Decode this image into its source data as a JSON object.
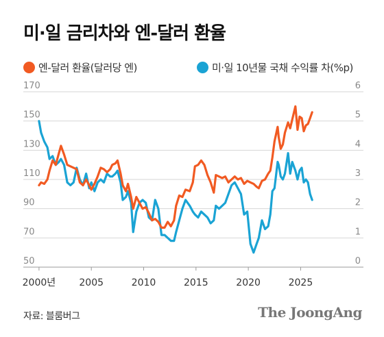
{
  "title": "미·일 금리차와 엔-달러 환율",
  "source": "자료: 블룸버그",
  "brand": "The JoongAng",
  "chart_data": {
    "type": "line",
    "x_tick_labels": [
      "2000년",
      "2005",
      "2010",
      "2015",
      "2020",
      "2025"
    ],
    "x_ticks": [
      2000,
      2005,
      2010,
      2015,
      2020,
      2025
    ],
    "xlim": [
      1998.5,
      2031
    ],
    "y_left": {
      "ticks": [
        50,
        70,
        90,
        110,
        130,
        150,
        170
      ],
      "ylim": [
        50,
        170
      ]
    },
    "y_right": {
      "ticks": [
        0,
        1,
        2,
        3,
        4,
        5,
        6
      ],
      "ylim": [
        0,
        6
      ]
    },
    "grid": true,
    "legend_position": "top",
    "series": [
      {
        "name": "엔-달러 환율(달러당 엔)",
        "axis": "left",
        "color": "#f15a22",
        "points": [
          [
            2000.0,
            106
          ],
          [
            2000.2,
            108
          ],
          [
            2000.5,
            107
          ],
          [
            2000.8,
            110
          ],
          [
            2001.0,
            116
          ],
          [
            2001.3,
            123
          ],
          [
            2001.6,
            120
          ],
          [
            2001.9,
            128
          ],
          [
            2002.1,
            133
          ],
          [
            2002.4,
            127
          ],
          [
            2002.7,
            120
          ],
          [
            2003.0,
            119
          ],
          [
            2003.3,
            118
          ],
          [
            2003.6,
            117
          ],
          [
            2003.9,
            108
          ],
          [
            2004.2,
            106
          ],
          [
            2004.5,
            110
          ],
          [
            2004.8,
            106
          ],
          [
            2005.0,
            103
          ],
          [
            2005.3,
            107
          ],
          [
            2005.6,
            112
          ],
          [
            2005.9,
            118
          ],
          [
            2006.2,
            117
          ],
          [
            2006.5,
            115
          ],
          [
            2006.8,
            117
          ],
          [
            2007.0,
            120
          ],
          [
            2007.3,
            121
          ],
          [
            2007.5,
            123
          ],
          [
            2007.8,
            114
          ],
          [
            2008.0,
            106
          ],
          [
            2008.3,
            102
          ],
          [
            2008.5,
            107
          ],
          [
            2008.8,
            98
          ],
          [
            2009.0,
            90
          ],
          [
            2009.3,
            98
          ],
          [
            2009.6,
            94
          ],
          [
            2009.9,
            90
          ],
          [
            2010.2,
            91
          ],
          [
            2010.5,
            87
          ],
          [
            2010.8,
            82
          ],
          [
            2011.1,
            83
          ],
          [
            2011.4,
            81
          ],
          [
            2011.7,
            77
          ],
          [
            2012.0,
            77
          ],
          [
            2012.3,
            81
          ],
          [
            2012.6,
            78
          ],
          [
            2012.9,
            82
          ],
          [
            2013.1,
            92
          ],
          [
            2013.4,
            99
          ],
          [
            2013.7,
            98
          ],
          [
            2014.0,
            103
          ],
          [
            2014.4,
            102
          ],
          [
            2014.7,
            108
          ],
          [
            2014.9,
            119
          ],
          [
            2015.2,
            120
          ],
          [
            2015.5,
            123
          ],
          [
            2015.8,
            120
          ],
          [
            2016.1,
            113
          ],
          [
            2016.4,
            108
          ],
          [
            2016.7,
            101
          ],
          [
            2016.9,
            113
          ],
          [
            2017.2,
            112
          ],
          [
            2017.5,
            111
          ],
          [
            2017.8,
            112
          ],
          [
            2018.1,
            108
          ],
          [
            2018.4,
            110
          ],
          [
            2018.7,
            112
          ],
          [
            2019.0,
            110
          ],
          [
            2019.3,
            111
          ],
          [
            2019.6,
            107
          ],
          [
            2019.9,
            109
          ],
          [
            2020.2,
            108
          ],
          [
            2020.5,
            107
          ],
          [
            2020.8,
            105
          ],
          [
            2021.0,
            104
          ],
          [
            2021.3,
            109
          ],
          [
            2021.6,
            110
          ],
          [
            2021.9,
            114
          ],
          [
            2022.1,
            116
          ],
          [
            2022.3,
            125
          ],
          [
            2022.5,
            136
          ],
          [
            2022.8,
            146
          ],
          [
            2022.9,
            139
          ],
          [
            2023.1,
            131
          ],
          [
            2023.3,
            134
          ],
          [
            2023.5,
            142
          ],
          [
            2023.8,
            149
          ],
          [
            2024.0,
            145
          ],
          [
            2024.2,
            151
          ],
          [
            2024.5,
            160
          ],
          [
            2024.7,
            144
          ],
          [
            2024.9,
            153
          ],
          [
            2025.1,
            152
          ],
          [
            2025.3,
            143
          ],
          [
            2025.5,
            147
          ],
          [
            2025.7,
            148
          ],
          [
            2025.9,
            152
          ],
          [
            2026.1,
            156
          ]
        ]
      },
      {
        "name": "미·일 10년물 국채 수익률 차(%p)",
        "axis": "right",
        "color": "#1aa3d4",
        "points": [
          [
            2000.0,
            5.0
          ],
          [
            2000.2,
            4.6
          ],
          [
            2000.5,
            4.3
          ],
          [
            2000.8,
            4.1
          ],
          [
            2001.0,
            3.7
          ],
          [
            2001.3,
            3.8
          ],
          [
            2001.6,
            3.5
          ],
          [
            2001.9,
            3.6
          ],
          [
            2002.1,
            3.7
          ],
          [
            2002.4,
            3.5
          ],
          [
            2002.7,
            2.9
          ],
          [
            2003.0,
            2.8
          ],
          [
            2003.3,
            2.9
          ],
          [
            2003.6,
            3.4
          ],
          [
            2003.9,
            3.0
          ],
          [
            2004.2,
            2.8
          ],
          [
            2004.5,
            3.2
          ],
          [
            2004.8,
            2.7
          ],
          [
            2005.0,
            2.9
          ],
          [
            2005.3,
            2.6
          ],
          [
            2005.6,
            2.9
          ],
          [
            2005.9,
            3.0
          ],
          [
            2006.2,
            2.9
          ],
          [
            2006.5,
            3.2
          ],
          [
            2006.8,
            3.1
          ],
          [
            2007.0,
            3.1
          ],
          [
            2007.3,
            3.2
          ],
          [
            2007.5,
            3.3
          ],
          [
            2007.8,
            2.9
          ],
          [
            2008.0,
            2.3
          ],
          [
            2008.3,
            2.4
          ],
          [
            2008.5,
            2.6
          ],
          [
            2008.8,
            2.2
          ],
          [
            2009.0,
            1.2
          ],
          [
            2009.3,
            1.9
          ],
          [
            2009.6,
            2.2
          ],
          [
            2009.9,
            2.3
          ],
          [
            2010.2,
            2.2
          ],
          [
            2010.5,
            1.7
          ],
          [
            2010.8,
            1.6
          ],
          [
            2011.1,
            2.3
          ],
          [
            2011.4,
            2.0
          ],
          [
            2011.7,
            1.1
          ],
          [
            2012.0,
            1.1
          ],
          [
            2012.3,
            1.0
          ],
          [
            2012.6,
            0.9
          ],
          [
            2012.9,
            0.9
          ],
          [
            2013.1,
            1.2
          ],
          [
            2013.4,
            1.6
          ],
          [
            2013.7,
            2.0
          ],
          [
            2014.0,
            2.3
          ],
          [
            2014.4,
            2.1
          ],
          [
            2014.7,
            1.9
          ],
          [
            2014.9,
            1.8
          ],
          [
            2015.2,
            1.7
          ],
          [
            2015.5,
            1.9
          ],
          [
            2015.8,
            1.8
          ],
          [
            2016.1,
            1.7
          ],
          [
            2016.4,
            1.5
          ],
          [
            2016.7,
            1.6
          ],
          [
            2016.9,
            2.1
          ],
          [
            2017.2,
            2.0
          ],
          [
            2017.5,
            2.1
          ],
          [
            2017.8,
            2.2
          ],
          [
            2018.1,
            2.5
          ],
          [
            2018.4,
            2.8
          ],
          [
            2018.7,
            2.9
          ],
          [
            2019.0,
            2.7
          ],
          [
            2019.3,
            2.5
          ],
          [
            2019.6,
            1.8
          ],
          [
            2019.9,
            1.9
          ],
          [
            2020.2,
            0.8
          ],
          [
            2020.5,
            0.5
          ],
          [
            2020.8,
            0.8
          ],
          [
            2021.0,
            1.0
          ],
          [
            2021.3,
            1.6
          ],
          [
            2021.6,
            1.3
          ],
          [
            2021.9,
            1.4
          ],
          [
            2022.1,
            1.8
          ],
          [
            2022.3,
            2.6
          ],
          [
            2022.5,
            2.7
          ],
          [
            2022.8,
            3.6
          ],
          [
            2022.9,
            3.5
          ],
          [
            2023.1,
            3.1
          ],
          [
            2023.3,
            3.0
          ],
          [
            2023.5,
            3.2
          ],
          [
            2023.8,
            3.9
          ],
          [
            2024.0,
            3.2
          ],
          [
            2024.2,
            3.6
          ],
          [
            2024.5,
            3.3
          ],
          [
            2024.7,
            3.0
          ],
          [
            2024.9,
            3.3
          ],
          [
            2025.1,
            3.4
          ],
          [
            2025.3,
            2.9
          ],
          [
            2025.5,
            3.0
          ],
          [
            2025.7,
            2.9
          ],
          [
            2025.9,
            2.5
          ],
          [
            2026.1,
            2.3
          ]
        ]
      }
    ]
  }
}
